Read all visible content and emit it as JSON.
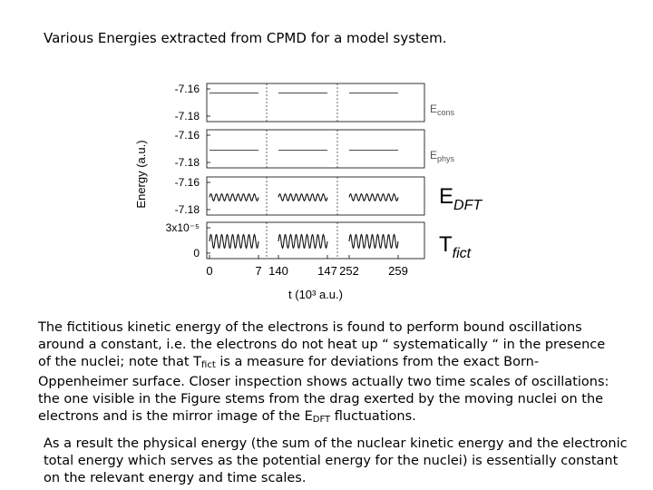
{
  "title": "Various Energies extracted from CPMD for a model system.",
  "paragraph1": {
    "part1": "The fictitious kinetic energy of the electrons is found to perform bound oscillations around a constant, i.e. the electrons do not heat up “ systematically “ in the presence of the nuclei; note that T",
    "sub1": "fict",
    "part2": " is a measure for deviations from the exact Born-Oppenheimer surface. Closer inspection shows actually two time scales of oscillations: the one visible in the Figure stems from the drag exerted by the moving nuclei on the electrons and is the mirror image of the E",
    "sub2": "DFT",
    "part3": " fluctuations."
  },
  "paragraph2": "As a result the physical energy (the sum of the nuclear kinetic energy and the electronic total energy which serves as the potential energy for the nuclei) is essentially constant on the relevant energy and time scales.",
  "chart_data": {
    "type": "line",
    "ylabel": "Energy (a.u.)",
    "xlabel": "t (10³ a.u.)",
    "x_ticks": [
      "0",
      "7",
      "140",
      "147",
      "252",
      "259"
    ],
    "x_segments": [
      [
        0,
        7
      ],
      [
        140,
        147
      ],
      [
        252,
        259
      ]
    ],
    "panels": [
      {
        "label_main": "E",
        "label_sub": "cons",
        "y_ticks": [
          "-7.16",
          "-7.18"
        ],
        "ylim": [
          -7.18,
          -7.16
        ],
        "value": -7.163,
        "amplitude": 0,
        "oscillations": 0
      },
      {
        "label_main": "E",
        "label_sub": "phys",
        "y_ticks": [
          "-7.16",
          "-7.18"
        ],
        "ylim": [
          -7.18,
          -7.16
        ],
        "value": -7.171,
        "amplitude": 0,
        "oscillations": 0
      },
      {
        "label_main": "E",
        "label_sub": "DFT",
        "y_ticks": [
          "-7.16",
          "-7.18"
        ],
        "ylim": [
          -7.18,
          -7.16
        ],
        "value": -7.171,
        "amplitude": 0.0025,
        "oscillations": 9
      },
      {
        "label_main": "T",
        "label_sub": "fict",
        "y_ticks": [
          "3x10⁻⁵",
          "0"
        ],
        "ylim": [
          0,
          3e-05
        ],
        "value": 1.4e-05,
        "amplitude": 8e-06,
        "oscillations": 9
      }
    ]
  }
}
